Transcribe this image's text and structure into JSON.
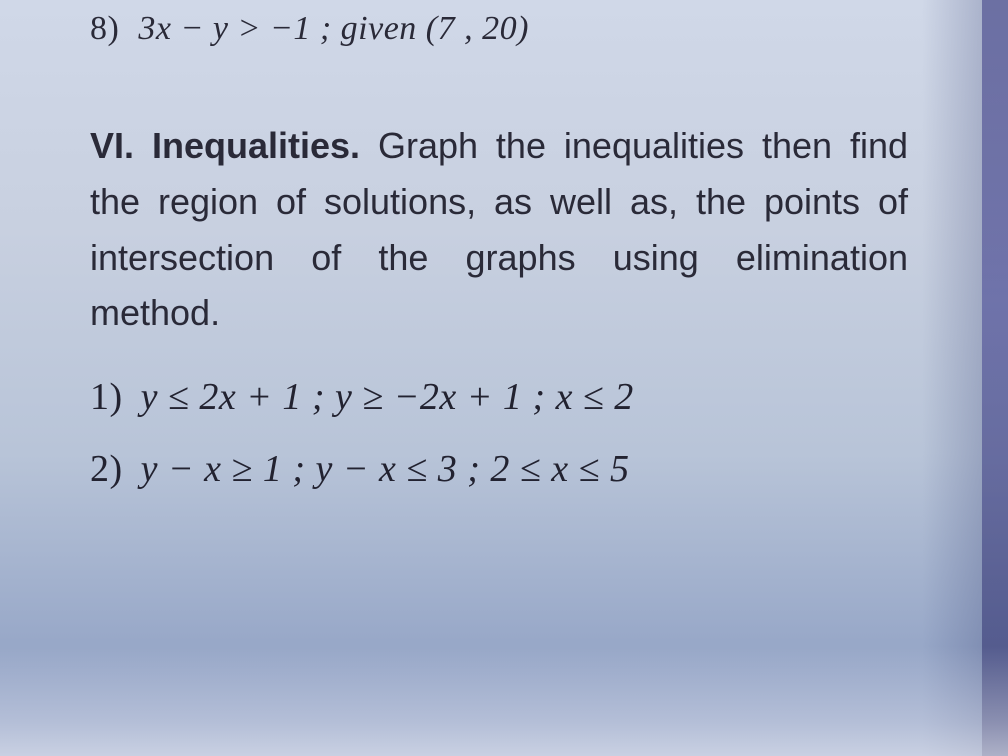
{
  "colors": {
    "text": "#2a2a38",
    "bg_top": "#d0d8e8",
    "bg_bottom": "#8898c0",
    "edge": "#1a1a6a"
  },
  "typography": {
    "body_family": "Times New Roman, serif",
    "section_family": "Arial, sans-serif",
    "q_fontsize_pt": 26,
    "section_fontsize_pt": 27,
    "eq_fontsize_pt": 28
  },
  "q8": {
    "number": "8)",
    "expr": "3x − y  >  −1 ;   given (7 , 20)"
  },
  "section6": {
    "label": "VI. Inequalities.",
    "text": " Graph the inequalities then find the region of solutions, as well as, the points of intersection of the graphs using elimination method."
  },
  "problems": [
    {
      "number": "1)",
      "expr": "y ≤ 2x + 1 ;   y  ≥  −2x + 1 ;   x ≤ 2"
    },
    {
      "number": "2)",
      "expr": "y − x ≥ 1 ;   y − x  ≤ 3 ;   2 ≤ x ≤ 5"
    }
  ]
}
